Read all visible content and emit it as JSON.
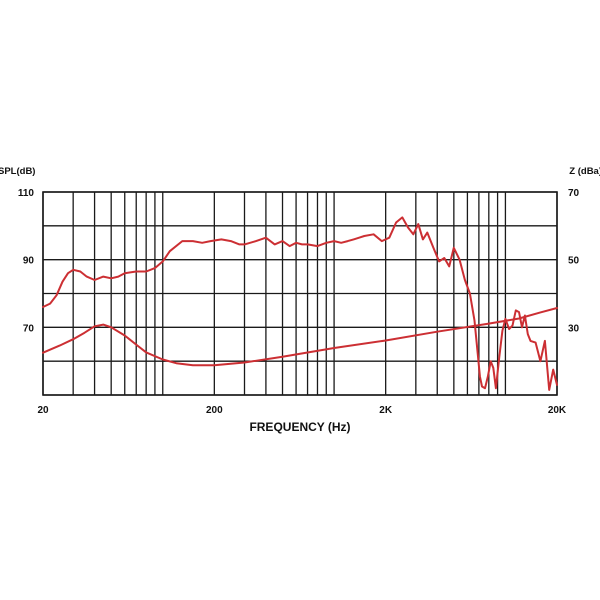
{
  "chart_data": {
    "type": "line",
    "xlabel": "FREQUENCY (Hz)",
    "x_scale": "log",
    "xlim": [
      20,
      20000
    ],
    "x_ticks": [
      {
        "value": 20,
        "label": "20"
      },
      {
        "value": 200,
        "label": "200"
      },
      {
        "value": 2000,
        "label": "2K"
      },
      {
        "value": 20000,
        "label": "20K"
      }
    ],
    "y_left": {
      "label": "SPL(dB)",
      "ylim": [
        50,
        110
      ],
      "ticks": [
        {
          "value": 110,
          "label": "110"
        },
        {
          "value": 90,
          "label": "90"
        },
        {
          "value": 70,
          "label": "70"
        }
      ]
    },
    "y_right": {
      "label": "Z (dBa)",
      "ylim": [
        10,
        70
      ],
      "ticks": [
        {
          "value": 70,
          "label": "70"
        },
        {
          "value": 50,
          "label": "50"
        },
        {
          "value": 30,
          "label": "30"
        }
      ]
    },
    "grid": true,
    "series_color": "#cc2f33",
    "series": [
      {
        "axis": "left",
        "x": [
          20,
          22,
          24,
          26,
          28,
          30,
          33,
          36,
          40,
          45,
          50,
          55,
          60,
          70,
          80,
          90,
          100,
          110,
          130,
          150,
          170,
          190,
          220,
          250,
          280,
          300,
          350,
          400,
          450,
          500,
          550,
          600,
          650,
          700,
          800,
          900,
          1000,
          1100,
          1200,
          1300,
          1400,
          1500,
          1700,
          1900,
          2100,
          2300,
          2500,
          2700,
          2900,
          3100,
          3300,
          3500,
          3800,
          4100,
          4400,
          4700,
          5000,
          5400,
          5800,
          6200,
          6600,
          6900,
          7100,
          7300,
          7600,
          7900,
          8200,
          8500,
          8800,
          9200,
          9600,
          10000,
          10500,
          11000,
          11500,
          12000,
          12500,
          13000,
          13500,
          14000,
          15000,
          16000,
          17000,
          18000,
          19000,
          20000
        ],
        "values": [
          76,
          77,
          79.5,
          83.5,
          86,
          87,
          86.5,
          85,
          84,
          85,
          84.5,
          85,
          86,
          86.5,
          86.5,
          87.5,
          89.5,
          92.5,
          95.5,
          95.5,
          95,
          95.5,
          96,
          95.5,
          94.5,
          94.5,
          95.5,
          96.5,
          94.5,
          95.5,
          94,
          95,
          94.5,
          94.5,
          94,
          95,
          95.5,
          95,
          95.5,
          96,
          96.5,
          97,
          97.5,
          95.5,
          96.5,
          101,
          102.5,
          99.5,
          97.5,
          100.5,
          96,
          98,
          93.5,
          89.5,
          90.5,
          88,
          93.5,
          90,
          84,
          80,
          72,
          62,
          55.5,
          52.5,
          52,
          55.5,
          60,
          58,
          52,
          61,
          69,
          72.5,
          69.5,
          70.5,
          75,
          74.5,
          70,
          73.5,
          68,
          66,
          65.5,
          60,
          66,
          51.5,
          57.5,
          53
        ]
      },
      {
        "axis": "right",
        "x": [
          20,
          25,
          30,
          35,
          40,
          45,
          50,
          60,
          70,
          80,
          100,
          120,
          150,
          200,
          300,
          500,
          1000,
          2000,
          4000,
          8000,
          12000,
          16000,
          20000
        ],
        "values": [
          22.5,
          24.6,
          26.5,
          28.4,
          30.3,
          30.8,
          30,
          27.6,
          24.9,
          22.6,
          20.5,
          19.4,
          18.8,
          18.8,
          19.6,
          21.3,
          23.9,
          26.1,
          28.7,
          31.1,
          32.6,
          34.4,
          35.7
        ]
      }
    ]
  }
}
